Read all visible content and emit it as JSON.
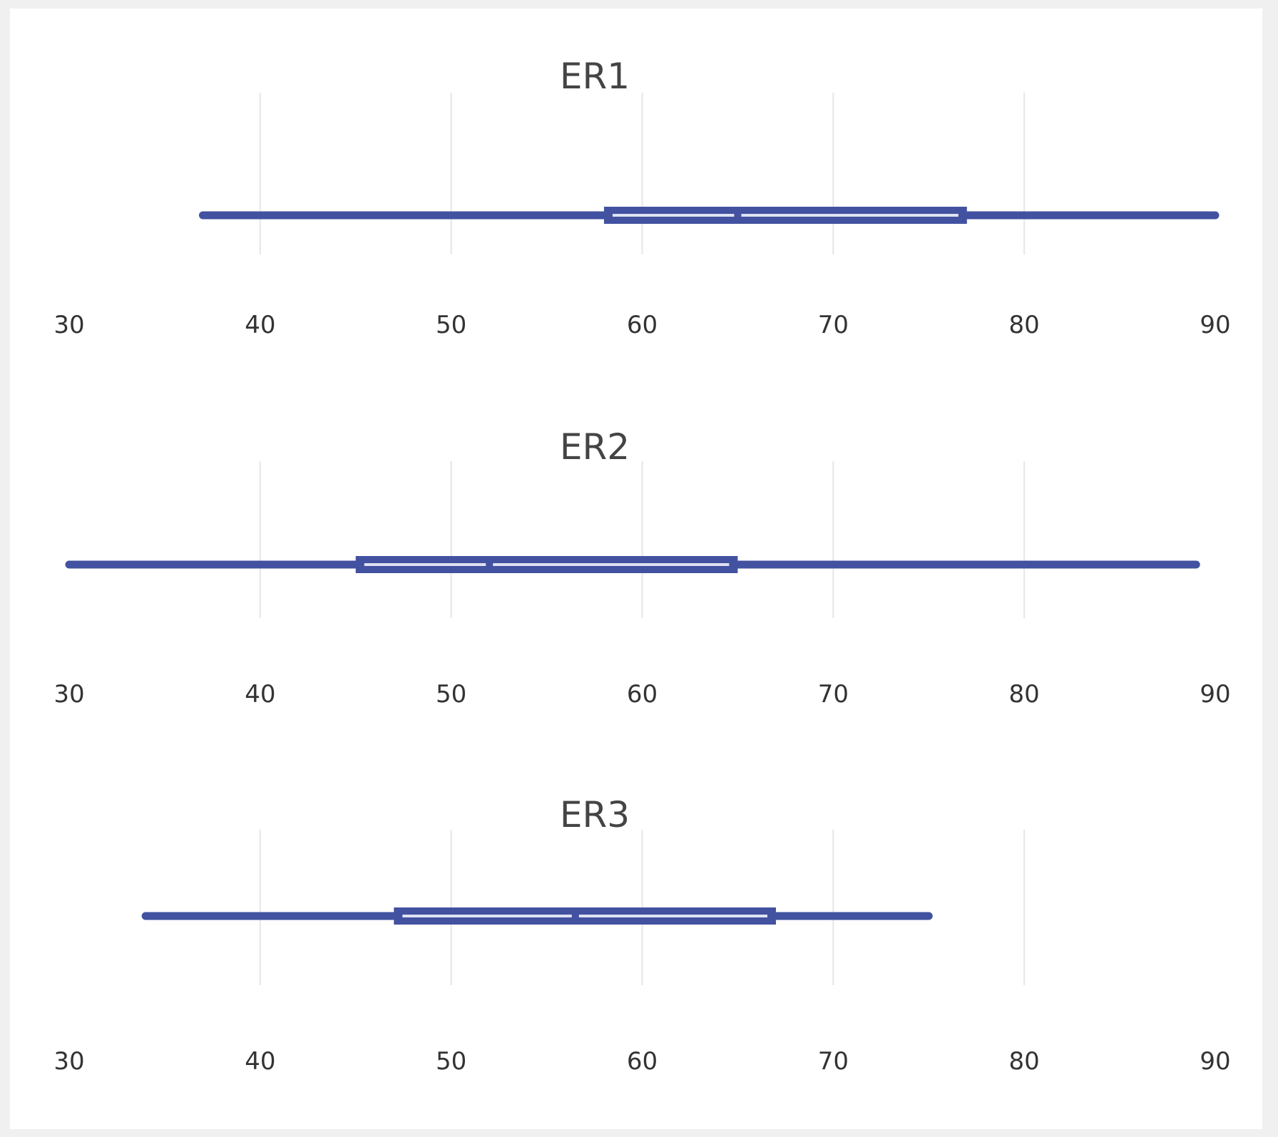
{
  "colors": {
    "box": "#4252a0",
    "median": "#ffffff",
    "grid": "#e6e6e6",
    "background": "#ffffff",
    "page": "#f0f0f0"
  },
  "chart_data": [
    {
      "type": "box",
      "title": "ER1",
      "orientation": "horizontal",
      "xlim": [
        30,
        90
      ],
      "ticks": [
        30,
        40,
        50,
        60,
        70,
        80,
        90
      ],
      "tick_labels": [
        "30",
        "40",
        "50",
        "60",
        "70",
        "80",
        "90"
      ],
      "grid": true,
      "box": {
        "min": 37,
        "q1": 58,
        "median": 65,
        "q3": 77,
        "max": 90
      }
    },
    {
      "type": "box",
      "title": "ER2",
      "orientation": "horizontal",
      "xlim": [
        30,
        90
      ],
      "ticks": [
        30,
        40,
        50,
        60,
        70,
        80,
        90
      ],
      "tick_labels": [
        "30",
        "40",
        "50",
        "60",
        "70",
        "80",
        "90"
      ],
      "grid": true,
      "box": {
        "min": 30,
        "q1": 45,
        "median": 52,
        "q3": 65,
        "max": 89
      }
    },
    {
      "type": "box",
      "title": "ER3",
      "orientation": "horizontal",
      "xlim": [
        30,
        90
      ],
      "ticks": [
        30,
        40,
        50,
        60,
        70,
        80,
        90
      ],
      "tick_labels": [
        "30",
        "40",
        "50",
        "60",
        "70",
        "80",
        "90"
      ],
      "grid": true,
      "box": {
        "min": 34,
        "q1": 47,
        "median": 56.5,
        "q3": 67,
        "max": 75
      }
    }
  ]
}
